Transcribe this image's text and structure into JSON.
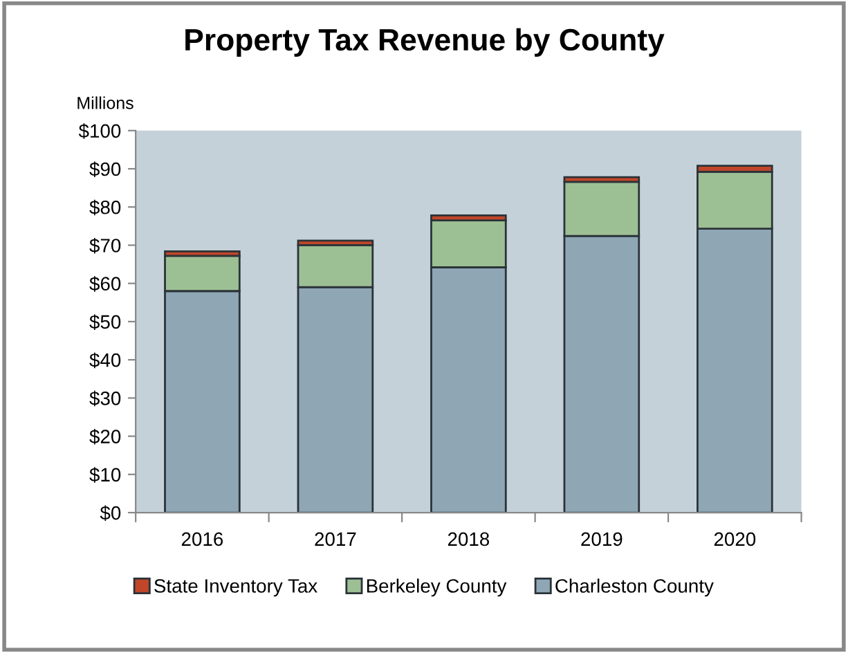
{
  "chart_data": {
    "type": "bar",
    "title": "Property Tax Revenue by County",
    "ylabel": "Millions",
    "categories": [
      "2016",
      "2017",
      "2018",
      "2019",
      "2020"
    ],
    "stacked": true,
    "legend": "bottom",
    "grid": false,
    "ylim": [
      0,
      100
    ],
    "yticks": [
      {
        "value": 0,
        "label": "$0"
      },
      {
        "value": 10,
        "label": "$10"
      },
      {
        "value": 20,
        "label": "$20"
      },
      {
        "value": 30,
        "label": "$30"
      },
      {
        "value": 40,
        "label": "$40"
      },
      {
        "value": 50,
        "label": "$50"
      },
      {
        "value": 60,
        "label": "$60"
      },
      {
        "value": 70,
        "label": "$70"
      },
      {
        "value": 80,
        "label": "$80"
      },
      {
        "value": 90,
        "label": "$90"
      },
      {
        "value": 100,
        "label": "$100"
      }
    ],
    "series": [
      {
        "name": "Charleston County",
        "color": "#8fa7b5",
        "values": [
          58.0,
          59.0,
          64.2,
          72.4,
          74.3
        ]
      },
      {
        "name": "Berkeley County",
        "color": "#9dbf94",
        "values": [
          9.2,
          11.0,
          12.3,
          14.2,
          14.9
        ]
      },
      {
        "name": "State Inventory Tax",
        "color": "#c0462a",
        "values": [
          1.2,
          1.2,
          1.3,
          1.2,
          1.6
        ]
      }
    ]
  }
}
